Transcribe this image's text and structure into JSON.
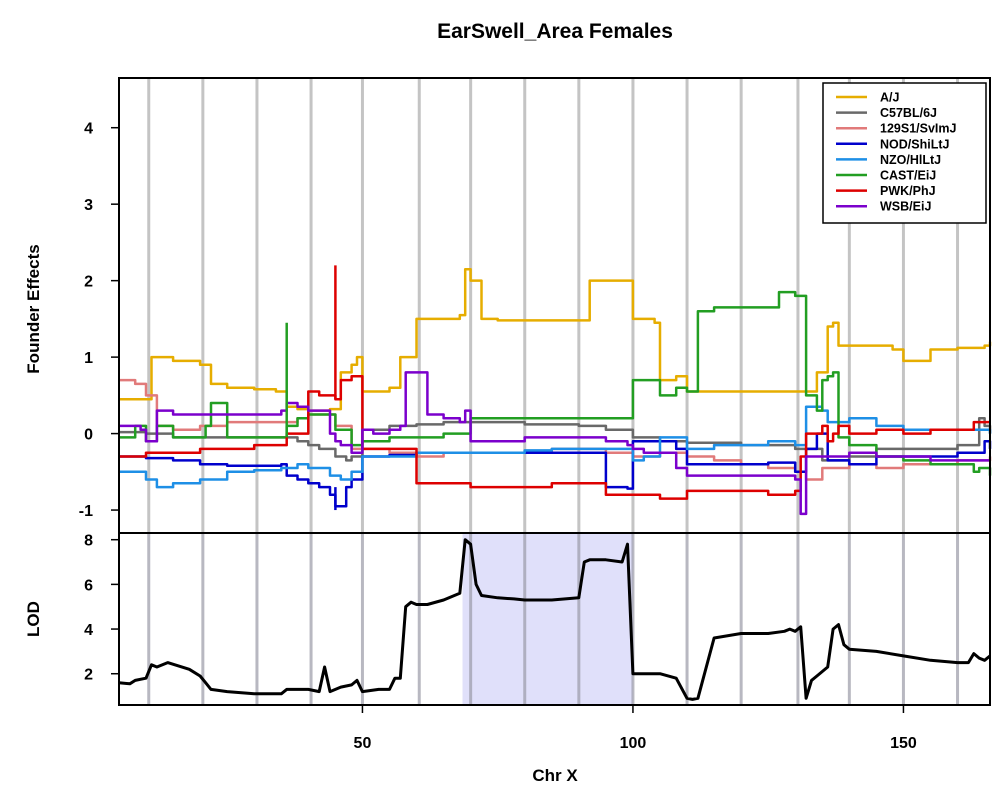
{
  "chart_data": {
    "type": "line",
    "title": "EarSwell_Area Females",
    "xlabel": "Chr X",
    "xlim": [
      5,
      166
    ],
    "xticks": [
      50,
      100,
      150
    ],
    "marker_positions": [
      10.5,
      20.5,
      30.5,
      40.5,
      50,
      60.5,
      70,
      80,
      90,
      100,
      110,
      120,
      130.5,
      140,
      150,
      160
    ],
    "grid": true,
    "top_panel": {
      "ylabel": "Founder Effects",
      "ylim": [
        -1.3,
        4.65
      ],
      "yticks": [
        -1,
        0,
        1,
        2,
        3,
        4
      ],
      "legend_position": "top-right",
      "series": [
        {
          "name": "A/J",
          "color": "#E6AD00",
          "x": [
            5,
            10,
            11,
            12,
            15,
            20,
            22,
            25,
            30,
            34,
            36,
            38,
            40,
            44,
            46,
            48,
            49,
            50,
            52,
            55,
            57,
            60,
            62,
            68,
            69,
            70,
            72,
            75,
            80,
            85,
            90,
            92,
            95,
            99,
            100,
            102,
            104,
            105,
            108,
            110,
            112,
            115,
            120,
            125,
            128,
            130,
            132,
            134,
            136,
            137,
            138,
            140,
            145,
            148,
            150,
            155,
            160,
            165,
            166
          ],
          "y": [
            0.45,
            0.45,
            1.0,
            1.0,
            0.95,
            0.9,
            0.65,
            0.6,
            0.58,
            0.55,
            0.35,
            0.32,
            0.3,
            0.32,
            0.8,
            0.9,
            1.0,
            0.55,
            0.55,
            0.6,
            1.0,
            1.5,
            1.5,
            1.55,
            2.15,
            2.0,
            1.5,
            1.48,
            1.48,
            1.48,
            1.48,
            2.0,
            2.0,
            2.0,
            1.5,
            1.5,
            1.45,
            0.7,
            0.75,
            0.55,
            0.55,
            0.55,
            0.55,
            0.55,
            0.55,
            0.55,
            0.55,
            0.8,
            1.4,
            1.45,
            1.15,
            1.15,
            1.15,
            1.1,
            0.95,
            1.1,
            1.12,
            1.15,
            1.2
          ]
        },
        {
          "name": "C57BL/6J",
          "color": "#696969",
          "x": [
            5,
            10,
            15,
            20,
            25,
            30,
            35,
            38,
            40,
            42,
            45,
            47,
            48,
            50,
            55,
            60,
            65,
            70,
            75,
            80,
            85,
            90,
            95,
            100,
            105,
            110,
            115,
            120,
            125,
            130,
            135,
            140,
            145,
            150,
            155,
            160,
            164,
            165,
            166
          ],
          "y": [
            0.02,
            0.0,
            -0.05,
            -0.05,
            -0.05,
            -0.05,
            -0.05,
            -0.1,
            -0.15,
            -0.2,
            -0.3,
            -0.35,
            -0.3,
            0.05,
            0.1,
            0.12,
            0.15,
            0.15,
            0.15,
            0.12,
            0.12,
            0.1,
            0.05,
            -0.05,
            -0.1,
            -0.12,
            -0.12,
            -0.15,
            -0.15,
            -0.2,
            -0.35,
            -0.3,
            -0.2,
            -0.2,
            -0.2,
            -0.15,
            0.2,
            0.1,
            0.0
          ]
        },
        {
          "name": "129S1/SvImJ",
          "color": "#E17A7A",
          "x": [
            5,
            8,
            10,
            12,
            15,
            20,
            25,
            30,
            35,
            38,
            40,
            45,
            48,
            50,
            55,
            60,
            65,
            70,
            75,
            80,
            85,
            90,
            95,
            100,
            105,
            110,
            115,
            120,
            125,
            130,
            132,
            135,
            140,
            145,
            150,
            155,
            160,
            166
          ],
          "y": [
            0.7,
            0.65,
            0.5,
            0.1,
            0.05,
            0.1,
            0.15,
            0.15,
            0.15,
            0.2,
            0.25,
            0.1,
            -0.2,
            -0.2,
            -0.25,
            -0.3,
            -0.25,
            -0.25,
            -0.25,
            -0.25,
            -0.2,
            -0.2,
            -0.25,
            -0.3,
            -0.25,
            -0.3,
            -0.35,
            -0.4,
            -0.45,
            -0.5,
            -0.6,
            -0.45,
            -0.4,
            -0.45,
            -0.4,
            -0.4,
            -0.35,
            -0.3
          ]
        },
        {
          "name": "NOD/ShiLtJ",
          "color": "#0000CC",
          "x": [
            5,
            10,
            15,
            20,
            25,
            30,
            35,
            36,
            38,
            40,
            42,
            44,
            45,
            47,
            48,
            50,
            55,
            60,
            65,
            70,
            75,
            80,
            85,
            90,
            95,
            99,
            100,
            102,
            104,
            108,
            110,
            115,
            120,
            125,
            128,
            130,
            132,
            134,
            136,
            140,
            145,
            150,
            155,
            160,
            165,
            166
          ],
          "y": [
            -0.3,
            -0.32,
            -0.35,
            -0.4,
            -0.42,
            -0.42,
            -0.4,
            -0.55,
            -0.6,
            -0.65,
            -0.7,
            -0.8,
            -0.95,
            -0.7,
            -0.6,
            -0.3,
            -0.28,
            -0.25,
            -0.25,
            -0.25,
            -0.25,
            -0.25,
            -0.25,
            -0.25,
            -0.7,
            -0.72,
            -0.1,
            -0.1,
            -0.1,
            -0.2,
            -0.4,
            -0.4,
            -0.4,
            -0.38,
            -0.38,
            -0.5,
            -0.2,
            0.0,
            -0.35,
            -0.4,
            -0.3,
            -0.3,
            -0.3,
            -0.25,
            -0.1,
            -0.2
          ]
        },
        {
          "name": "NZO/HlLtJ",
          "color": "#1E8FE6",
          "x": [
            5,
            10,
            12,
            15,
            20,
            25,
            30,
            35,
            38,
            40,
            44,
            46,
            48,
            50,
            55,
            60,
            65,
            70,
            75,
            80,
            85,
            90,
            95,
            100,
            102,
            105,
            110,
            115,
            120,
            125,
            130,
            132,
            135,
            136,
            140,
            145,
            150,
            155,
            160,
            166
          ],
          "y": [
            -0.5,
            -0.6,
            -0.7,
            -0.65,
            -0.6,
            -0.5,
            -0.48,
            -0.45,
            -0.4,
            -0.45,
            -0.55,
            -0.6,
            -0.5,
            -0.3,
            -0.3,
            -0.25,
            -0.25,
            -0.25,
            -0.25,
            -0.22,
            -0.2,
            -0.2,
            -0.2,
            -0.35,
            -0.3,
            -0.05,
            -0.2,
            -0.15,
            -0.15,
            -0.1,
            -0.15,
            0.35,
            0.3,
            0.15,
            0.2,
            0.1,
            0.05,
            0.05,
            0.05,
            0.0
          ]
        },
        {
          "name": "CAST/EiJ",
          "color": "#229E22",
          "x": [
            5,
            8,
            10,
            12,
            15,
            20,
            21,
            22,
            25,
            30,
            35,
            36,
            38,
            40,
            42,
            45,
            48,
            50,
            55,
            60,
            65,
            70,
            72,
            75,
            80,
            85,
            90,
            95,
            99,
            100,
            104,
            105,
            107,
            108,
            110,
            112,
            115,
            118,
            120,
            125,
            127,
            128,
            130,
            131,
            132,
            134,
            135,
            136,
            137,
            138,
            140,
            145,
            150,
            155,
            160,
            163,
            164,
            166
          ],
          "y": [
            -0.05,
            0.1,
            -0.1,
            0.1,
            -0.05,
            -0.05,
            0.1,
            0.4,
            -0.05,
            -0.05,
            -0.05,
            0.1,
            0.2,
            0.25,
            0.25,
            0.05,
            -0.15,
            -0.1,
            -0.05,
            -0.05,
            0.0,
            0.2,
            0.2,
            0.2,
            0.2,
            0.2,
            0.2,
            0.2,
            0.2,
            0.7,
            0.7,
            0.5,
            0.5,
            0.6,
            0.55,
            1.6,
            1.65,
            1.65,
            1.65,
            1.65,
            1.85,
            1.85,
            1.8,
            1.8,
            0.5,
            0.3,
            0.7,
            0.75,
            0.8,
            -0.05,
            -0.15,
            -0.3,
            -0.35,
            -0.4,
            -0.4,
            -0.5,
            -0.45,
            -0.55
          ]
        },
        {
          "name": "PWK/PhJ",
          "color": "#DD0000",
          "x": [
            5,
            10,
            15,
            20,
            25,
            30,
            35,
            36,
            38,
            40,
            42,
            44,
            45,
            46,
            48,
            50,
            55,
            60,
            65,
            70,
            75,
            80,
            85,
            90,
            95,
            100,
            105,
            110,
            115,
            120,
            125,
            130,
            131,
            132,
            135,
            136,
            137,
            138,
            140,
            145,
            150,
            155,
            160,
            163,
            166
          ],
          "y": [
            -0.3,
            -0.25,
            -0.25,
            -0.2,
            -0.2,
            -0.15,
            -0.15,
            0.0,
            0.0,
            0.55,
            0.5,
            0.5,
            0.45,
            0.7,
            0.75,
            -0.2,
            -0.2,
            -0.65,
            -0.65,
            -0.7,
            -0.7,
            -0.7,
            -0.65,
            -0.65,
            -0.8,
            -0.8,
            -0.85,
            -0.75,
            -0.75,
            -0.75,
            -0.8,
            -0.75,
            -0.3,
            0.0,
            0.1,
            -0.1,
            0.0,
            0.1,
            0.0,
            0.05,
            0.0,
            0.05,
            0.05,
            0.15,
            0.15
          ]
        },
        {
          "name": "WSB/EiJ",
          "color": "#7B00CC",
          "x": [
            5,
            8,
            9,
            10,
            12,
            15,
            20,
            25,
            30,
            35,
            36,
            38,
            40,
            44,
            45,
            46,
            48,
            50,
            52,
            55,
            57,
            58,
            60,
            62,
            65,
            68,
            69,
            70,
            75,
            80,
            85,
            90,
            95,
            99,
            100,
            102,
            104,
            108,
            110,
            115,
            120,
            125,
            130,
            131,
            132,
            135,
            140,
            145,
            150,
            155,
            160,
            166
          ],
          "y": [
            0.1,
            0.1,
            0.05,
            -0.1,
            0.3,
            0.25,
            0.25,
            0.25,
            0.25,
            0.3,
            0.4,
            0.35,
            0.3,
            0.0,
            -0.1,
            -0.15,
            -0.25,
            0.05,
            0.0,
            0.05,
            0.1,
            0.8,
            0.8,
            0.25,
            0.2,
            0.15,
            0.3,
            -0.1,
            -0.1,
            -0.05,
            -0.05,
            -0.05,
            -0.1,
            -0.15,
            -0.2,
            -0.25,
            -0.25,
            -0.45,
            -0.55,
            -0.55,
            -0.55,
            -0.55,
            -0.6,
            -1.05,
            -0.3,
            -0.3,
            -0.25,
            -0.3,
            -0.3,
            -0.35,
            -0.35,
            -0.35
          ]
        }
      ],
      "spikes": [
        {
          "series": "CAST/EiJ",
          "x": 36,
          "y0": -0.05,
          "y1": 1.45
        },
        {
          "series": "PWK/PhJ",
          "x": 45,
          "y0": 0.45,
          "y1": 2.2
        },
        {
          "series": "NOD/ShiLtJ",
          "x": 45,
          "y0": -0.7,
          "y1": -1.0
        }
      ]
    },
    "bottom_panel": {
      "ylabel": "LOD",
      "ylim": [
        0.6,
        8.3
      ],
      "yticks": [
        2,
        4,
        6,
        8
      ],
      "highlight_interval": [
        68.5,
        100
      ],
      "series": [
        {
          "name": "LOD",
          "color": "#000000",
          "x": [
            5,
            7,
            8,
            10,
            11,
            12,
            14,
            16,
            18,
            20,
            21,
            22,
            25,
            30,
            35,
            36,
            38,
            40,
            42,
            43,
            44,
            45,
            46,
            48,
            49,
            50,
            53,
            55,
            56,
            57,
            58,
            59,
            60,
            62,
            65,
            68,
            69,
            70,
            71,
            72,
            75,
            78,
            80,
            85,
            90,
            91,
            92,
            95,
            98,
            99,
            100,
            101,
            102,
            105,
            108,
            110,
            111,
            112,
            115,
            120,
            125,
            128,
            129,
            130,
            131,
            132,
            133,
            134,
            135,
            136,
            137,
            138,
            139,
            140,
            145,
            150,
            155,
            160,
            162,
            163,
            164,
            165,
            166
          ],
          "y": [
            1.6,
            1.55,
            1.7,
            1.8,
            2.4,
            2.3,
            2.5,
            2.35,
            2.2,
            1.9,
            1.6,
            1.3,
            1.2,
            1.1,
            1.1,
            1.3,
            1.3,
            1.3,
            1.2,
            2.3,
            1.2,
            1.3,
            1.4,
            1.5,
            1.7,
            1.2,
            1.3,
            1.3,
            1.8,
            1.8,
            5.0,
            5.2,
            5.1,
            5.1,
            5.3,
            5.6,
            8.0,
            7.8,
            6.0,
            5.5,
            5.4,
            5.35,
            5.3,
            5.3,
            5.4,
            7.0,
            7.1,
            7.1,
            7.0,
            7.8,
            2.0,
            2.0,
            2.0,
            2.0,
            1.8,
            0.9,
            0.85,
            0.9,
            3.6,
            3.8,
            3.8,
            3.9,
            4.0,
            3.9,
            4.1,
            0.9,
            1.7,
            1.9,
            2.1,
            2.3,
            4.0,
            4.2,
            3.3,
            3.1,
            3.0,
            2.8,
            2.6,
            2.5,
            2.5,
            2.9,
            2.7,
            2.6,
            2.8
          ]
        }
      ]
    }
  }
}
